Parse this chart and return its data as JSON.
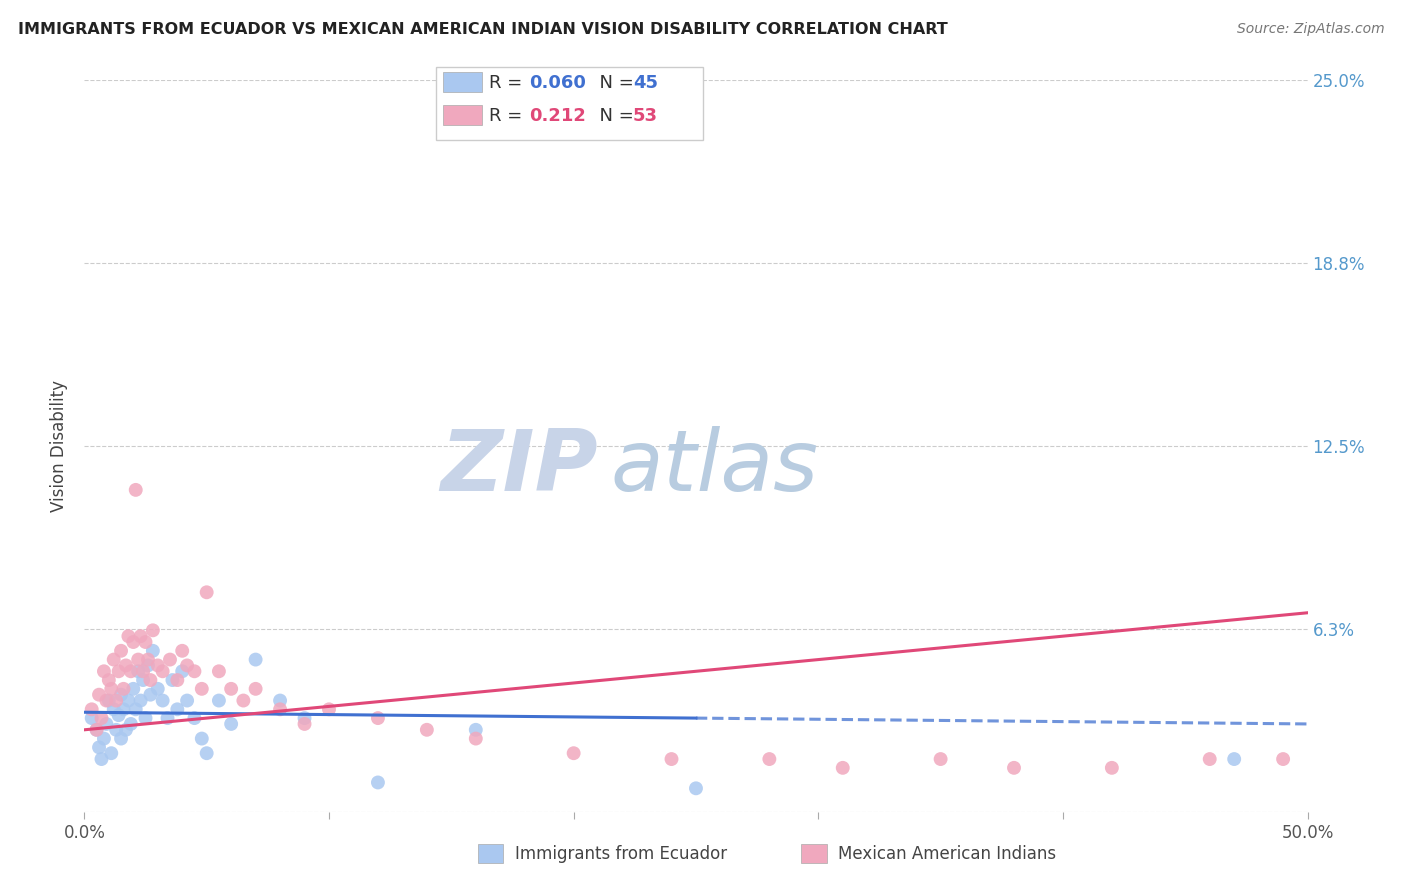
{
  "title": "IMMIGRANTS FROM ECUADOR VS MEXICAN AMERICAN INDIAN VISION DISABILITY CORRELATION CHART",
  "source": "Source: ZipAtlas.com",
  "ylabel": "Vision Disability",
  "xlim": [
    0.0,
    0.5
  ],
  "ylim": [
    0.0,
    0.25
  ],
  "yticks": [
    0.0,
    0.0625,
    0.125,
    0.1875,
    0.25
  ],
  "ytick_labels": [
    "",
    "6.3%",
    "12.5%",
    "18.8%",
    "25.0%"
  ],
  "xticks": [
    0.0,
    0.1,
    0.2,
    0.3,
    0.4,
    0.5
  ],
  "xtick_labels": [
    "0.0%",
    "",
    "",
    "",
    "",
    "50.0%"
  ],
  "blue_R": "0.060",
  "blue_N": "45",
  "pink_R": "0.212",
  "pink_N": "53",
  "blue_color": "#aac8f0",
  "pink_color": "#f0a8be",
  "blue_line_color": "#4070d0",
  "pink_line_color": "#e04878",
  "blue_line_solid_end": 0.25,
  "watermark_zip_color": "#c8d4e8",
  "watermark_atlas_color": "#b8cce0",
  "background_color": "#ffffff",
  "legend_text_color": "#333333",
  "right_tick_color": "#5599cc",
  "blue_scatter_x": [
    0.003,
    0.005,
    0.006,
    0.007,
    0.008,
    0.009,
    0.01,
    0.011,
    0.012,
    0.013,
    0.014,
    0.015,
    0.015,
    0.016,
    0.017,
    0.018,
    0.019,
    0.02,
    0.021,
    0.022,
    0.023,
    0.024,
    0.025,
    0.026,
    0.027,
    0.028,
    0.03,
    0.032,
    0.034,
    0.036,
    0.038,
    0.04,
    0.042,
    0.045,
    0.048,
    0.05,
    0.055,
    0.06,
    0.07,
    0.08,
    0.09,
    0.12,
    0.16,
    0.25,
    0.47
  ],
  "blue_scatter_y": [
    0.032,
    0.028,
    0.022,
    0.018,
    0.025,
    0.03,
    0.038,
    0.02,
    0.035,
    0.028,
    0.033,
    0.025,
    0.04,
    0.035,
    0.028,
    0.038,
    0.03,
    0.042,
    0.035,
    0.048,
    0.038,
    0.045,
    0.032,
    0.05,
    0.04,
    0.055,
    0.042,
    0.038,
    0.032,
    0.045,
    0.035,
    0.048,
    0.038,
    0.032,
    0.025,
    0.02,
    0.038,
    0.03,
    0.052,
    0.038,
    0.032,
    0.01,
    0.028,
    0.008,
    0.018
  ],
  "pink_scatter_x": [
    0.003,
    0.005,
    0.006,
    0.007,
    0.008,
    0.009,
    0.01,
    0.011,
    0.012,
    0.013,
    0.014,
    0.015,
    0.016,
    0.017,
    0.018,
    0.019,
    0.02,
    0.021,
    0.022,
    0.023,
    0.024,
    0.025,
    0.026,
    0.027,
    0.028,
    0.03,
    0.032,
    0.035,
    0.038,
    0.04,
    0.042,
    0.045,
    0.048,
    0.05,
    0.055,
    0.06,
    0.065,
    0.07,
    0.08,
    0.09,
    0.1,
    0.12,
    0.14,
    0.16,
    0.2,
    0.24,
    0.28,
    0.31,
    0.35,
    0.38,
    0.42,
    0.46,
    0.49
  ],
  "pink_scatter_y": [
    0.035,
    0.028,
    0.04,
    0.032,
    0.048,
    0.038,
    0.045,
    0.042,
    0.052,
    0.038,
    0.048,
    0.055,
    0.042,
    0.05,
    0.06,
    0.048,
    0.058,
    0.11,
    0.052,
    0.06,
    0.048,
    0.058,
    0.052,
    0.045,
    0.062,
    0.05,
    0.048,
    0.052,
    0.045,
    0.055,
    0.05,
    0.048,
    0.042,
    0.075,
    0.048,
    0.042,
    0.038,
    0.042,
    0.035,
    0.03,
    0.035,
    0.032,
    0.028,
    0.025,
    0.02,
    0.018,
    0.018,
    0.015,
    0.018,
    0.015,
    0.015,
    0.018,
    0.018
  ],
  "blue_line_x": [
    0.0,
    0.5
  ],
  "blue_line_y": [
    0.034,
    0.03
  ],
  "pink_line_x": [
    0.0,
    0.5
  ],
  "pink_line_y": [
    0.028,
    0.068
  ]
}
